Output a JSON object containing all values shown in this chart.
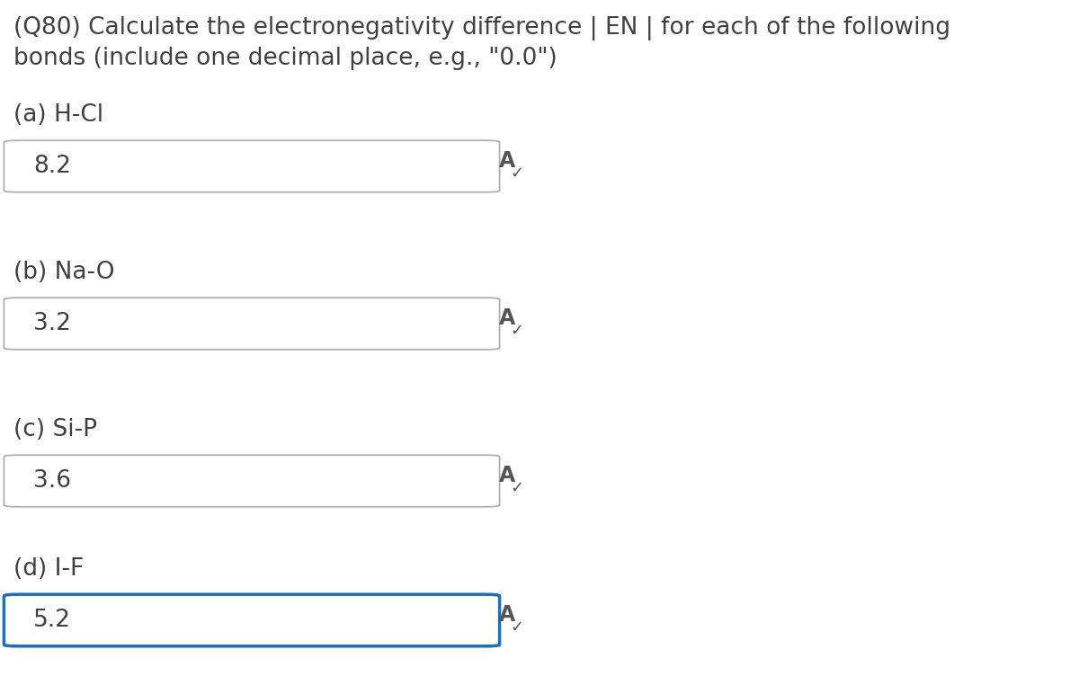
{
  "title_line1": "(Q80) Calculate the electronegativity difference | EN | for each of the following",
  "title_line2": "bonds (include one decimal place, e.g., \"0.0\")",
  "questions": [
    {
      "label": "(a) H-Cl",
      "value": "8.2",
      "active": false
    },
    {
      "label": "(b) Na-O",
      "value": "3.2",
      "active": false
    },
    {
      "label": "(c) Si-P",
      "value": "3.6",
      "active": false
    },
    {
      "label": "(d) I-F",
      "value": "5.2",
      "active": true
    }
  ],
  "background_color": "#ffffff",
  "text_color": "#404040",
  "box_border_inactive": "#b0b0b0",
  "box_border_active": "#1a6fbe",
  "box_fill": "#ffffff",
  "title_fontsize": 19,
  "label_fontsize": 19,
  "value_fontsize": 19,
  "icon_fontsize": 17
}
